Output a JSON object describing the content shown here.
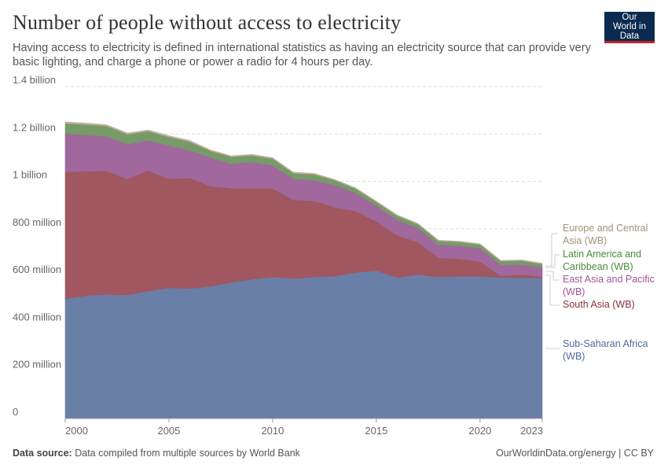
{
  "header": {
    "title": "Number of people without access to electricity",
    "subtitle": "Having access to electricity is defined in international statistics as having an electricity source that can provide very basic lighting, and charge a phone or power a radio for 4 hours per day.",
    "logo_text": "Our World in Data"
  },
  "footer": {
    "source_label": "Data source:",
    "source_text": "Data compiled from multiple sources by World Bank",
    "right_text": "OurWorldinData.org/energy | CC BY"
  },
  "chart_data": {
    "type": "area",
    "stacked": true,
    "title": "Number of people without access to electricity",
    "xlabel": "",
    "ylabel": "",
    "xlim": [
      2000,
      2023
    ],
    "ylim": [
      0,
      1400000000
    ],
    "grid": true,
    "legend_placement": "right",
    "x_ticks": [
      2000,
      2005,
      2010,
      2015,
      2020,
      2023
    ],
    "y_ticks": [
      {
        "value": 0,
        "label": "0"
      },
      {
        "value": 200000000,
        "label": "200 million"
      },
      {
        "value": 400000000,
        "label": "400 million"
      },
      {
        "value": 600000000,
        "label": "600 million"
      },
      {
        "value": 800000000,
        "label": "800 million"
      },
      {
        "value": 1000000000,
        "label": "1 billion"
      },
      {
        "value": 1200000000,
        "label": "1.2 billion"
      },
      {
        "value": 1400000000,
        "label": "1.4 billion"
      }
    ],
    "x": [
      2000,
      2001,
      2002,
      2003,
      2004,
      2005,
      2006,
      2007,
      2008,
      2009,
      2010,
      2011,
      2012,
      2013,
      2014,
      2015,
      2016,
      2017,
      2018,
      2019,
      2020,
      2021,
      2022,
      2023
    ],
    "series": [
      {
        "name": "Sub-Saharan Africa (WB)",
        "color": "#6a7fa8",
        "label_color": "#4c6a9c",
        "values": [
          505,
          518,
          524,
          521,
          537,
          551,
          548,
          557,
          574,
          587,
          597,
          590,
          597,
          601,
          615,
          624,
          594,
          607,
          597,
          600,
          600,
          594,
          594,
          591
        ]
      },
      {
        "name": "South Asia (WB)",
        "color": "#a0575f",
        "label_color": "#883039",
        "values": [
          536,
          524,
          520,
          490,
          509,
          460,
          467,
          423,
          397,
          384,
          374,
          332,
          321,
          290,
          260,
          207,
          179,
          137,
          81,
          74,
          61,
          8,
          14,
          7
        ]
      },
      {
        "name": "East Asia and Pacific (WB)",
        "color": "#a0689c",
        "label_color": "#a2559c",
        "values": [
          162,
          153,
          146,
          146,
          127,
          140,
          117,
          121,
          103,
          111,
          97,
          89,
          86,
          94,
          77,
          66,
          66,
          59,
          55,
          55,
          57,
          46,
          42,
          39
        ]
      },
      {
        "name": "Latin America and Caribbean (WB)",
        "color": "#769b68",
        "label_color": "#4c8b3c",
        "values": [
          42,
          45,
          44,
          42,
          39,
          37,
          36,
          28,
          30,
          28,
          28,
          24,
          26,
          20,
          18,
          17,
          17,
          17,
          16,
          16,
          16,
          16,
          16,
          15
        ]
      },
      {
        "name": "Europe and Central Asia (WB)",
        "color": "#c4b09c",
        "label_color": "#a39078",
        "values": [
          6,
          6,
          5,
          5,
          5,
          5,
          5,
          4,
          4,
          4,
          4,
          4,
          4,
          3,
          3,
          3,
          3,
          3,
          3,
          3,
          3,
          3,
          3,
          3
        ]
      }
    ],
    "value_unit": "million"
  }
}
